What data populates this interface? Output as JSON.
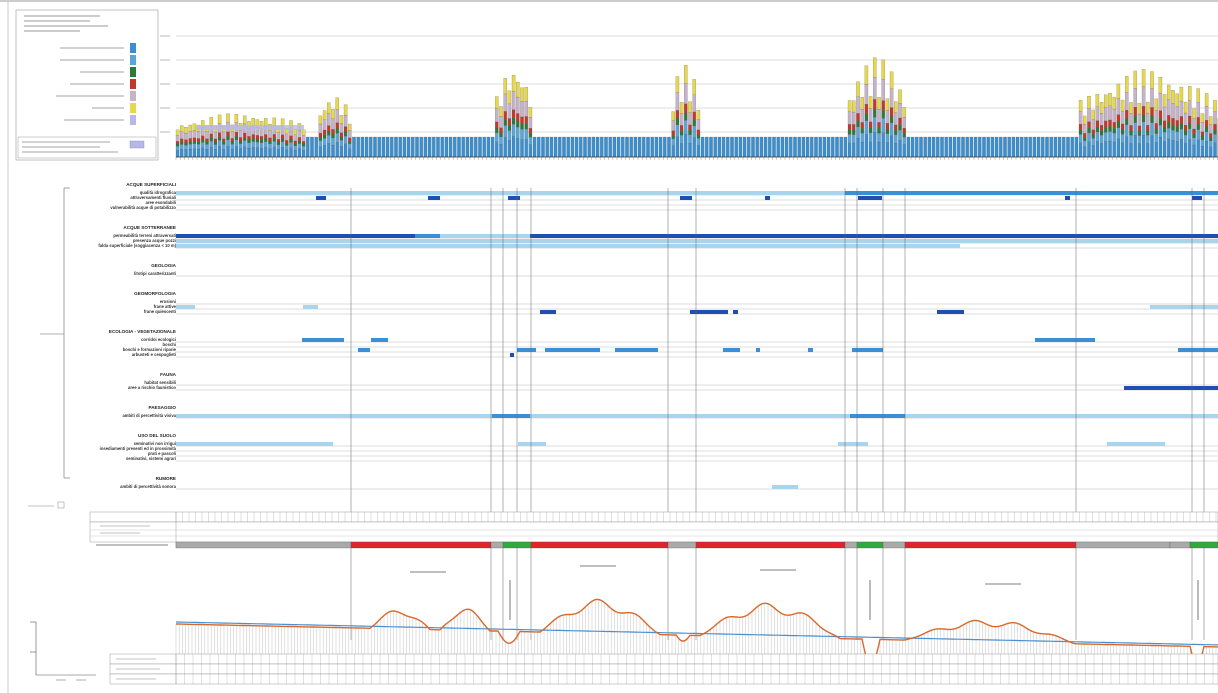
{
  "colors": {
    "acque_superficiali": "#3a8fd0",
    "acque_sotterranee": "#5aa6db",
    "geologia": "#2b7a3b",
    "geomorfologia": "#c0392b",
    "ecologia_vegetazionale": "#c7b3c9",
    "fauna": "#e6d84a",
    "paesaggio": "#b8b8e8",
    "dark_blue": "#1f4fb0",
    "mid_blue": "#3b8fd6",
    "light_blue": "#a9d4ee",
    "red_band": "#e0242a",
    "green_band": "#2faa3b",
    "gray_band": "#aaaaaa",
    "profile_line": "#d9692a",
    "ground_line": "#4a8fcf"
  },
  "sections": [
    {
      "title": "ACQUE SUPERFICIALI",
      "rows": [
        "qualità idrografica",
        "attraversamenti fluviali",
        "aree esondabili",
        "vulnerabilità acque di potabilizzo"
      ]
    },
    {
      "title": "ACQUE SOTTERRANEE",
      "rows": [
        "permeabilità terreni attraversati",
        "presenza acque pozzi",
        "falda superficiale (soggiacenza < 10 m)"
      ]
    },
    {
      "title": "GEOLOGIA",
      "rows": [
        "litotipi caratterizzanti"
      ]
    },
    {
      "title": "GEOMORFOLOGIA",
      "rows": [
        "erosioni",
        "frane attive",
        "frane quiescenti"
      ]
    },
    {
      "title": "ECOLOGIA - VEGETAZIONALE",
      "rows": [
        "corridoi ecologici",
        "boschi",
        "boschi e formazioni riparie",
        "arbusteti e cespuglieti"
      ]
    },
    {
      "title": "FAUNA",
      "rows": [
        "habitat sensibili",
        "aree a rischio faunistico"
      ]
    },
    {
      "title": "PAESAGGIO",
      "rows": [
        "ambiti di percettività visiva"
      ]
    },
    {
      "title": "USO DEL SUOLO",
      "rows": [
        "seminativi non irrigui",
        "insediamenti presenti ed in prossimità",
        "prati e pascoli",
        "seminativi, sistemi agrari"
      ]
    },
    {
      "title": "RUMORE",
      "rows": [
        "ambiti di percettività sonora"
      ]
    }
  ],
  "segments": [
    {
      "label": "GALLERIA A SEZIONE",
      "type": "gallery"
    },
    {
      "label": "VIADOTTO",
      "type": "viaduct"
    },
    {
      "label": "GALLERIA NATURALE",
      "type": "gallery"
    },
    {
      "label": "GALLERIA NATURALE",
      "type": "gallery"
    },
    {
      "label": "VIADOTTO",
      "type": "viaduct"
    },
    {
      "label": "GALLERIA NATURALE",
      "type": "gallery"
    },
    {
      "label": "VIADOTTO",
      "type": "viaduct"
    }
  ],
  "row_labels": {
    "elementi": "ELEMENTI DI PROGETTO",
    "progressive": "PROGRESSIVE",
    "quote": "QUOTE",
    "sezioni": "SEZIONI"
  }
}
